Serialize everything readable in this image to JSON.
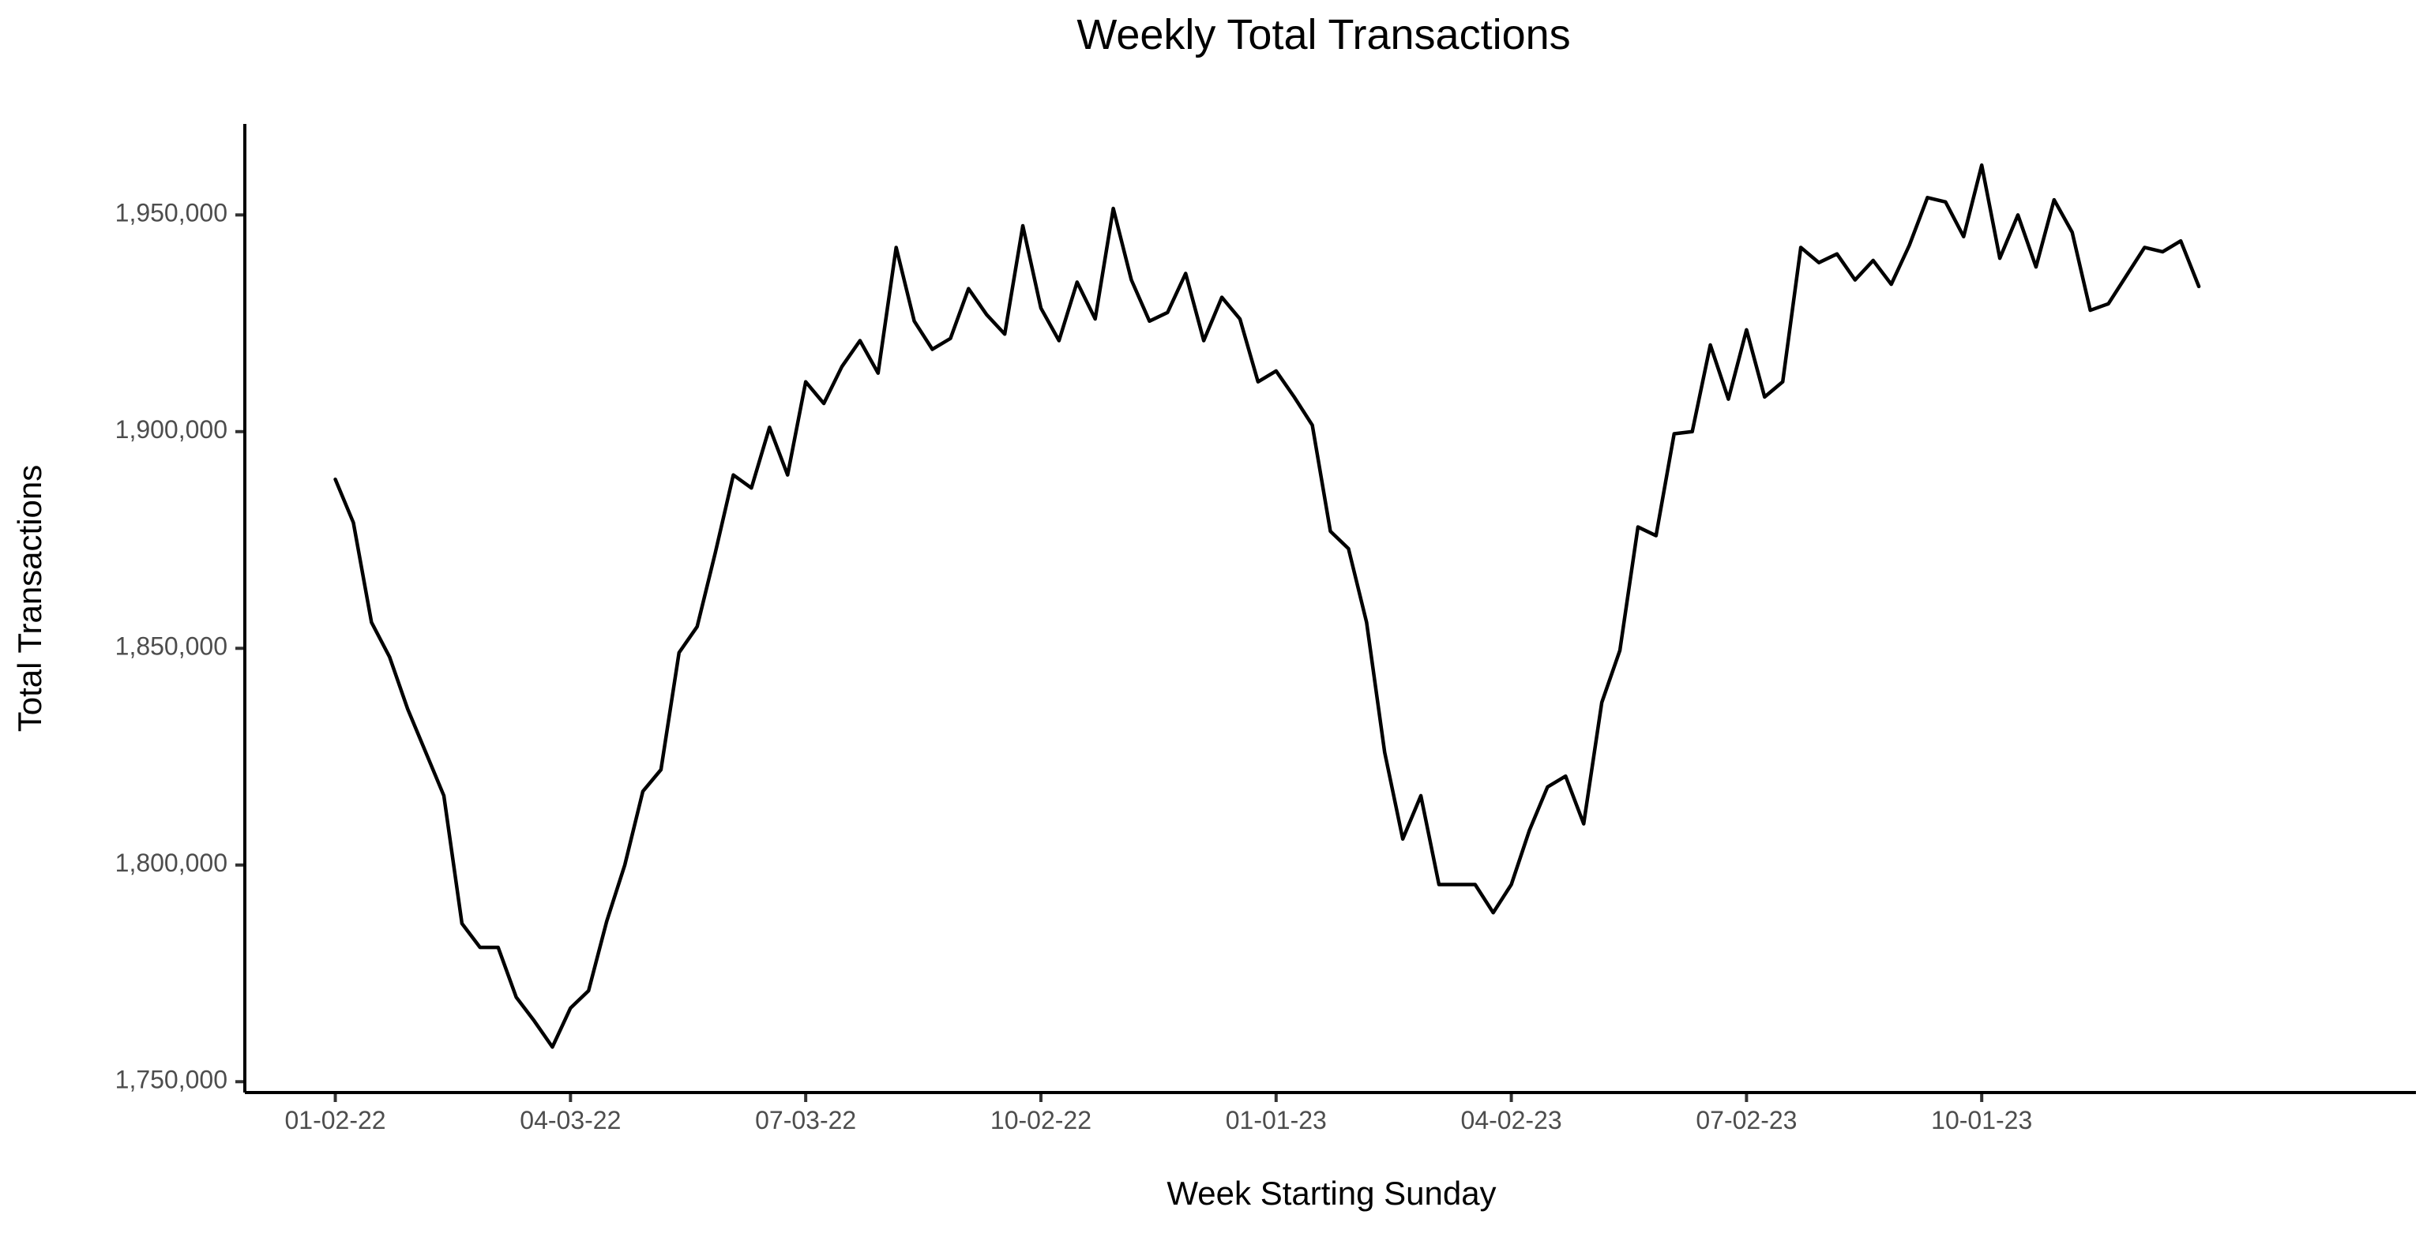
{
  "chart_data": {
    "type": "line",
    "title": "Weekly Total Transactions",
    "xlabel": "Week Starting Sunday",
    "ylabel": "Total Transactions",
    "x_start_date": "2022-01-02",
    "x_interval": "weekly",
    "xlim": [
      "2021-11-28",
      "2024-03-17"
    ],
    "ylim": [
      1747500,
      1971000
    ],
    "grid": false,
    "legend": "none",
    "x_ticks": [
      {
        "date": "2022-01-02",
        "label": "01-02-22"
      },
      {
        "date": "2022-04-03",
        "label": "04-03-22"
      },
      {
        "date": "2022-07-03",
        "label": "07-03-22"
      },
      {
        "date": "2022-10-02",
        "label": "10-02-22"
      },
      {
        "date": "2023-01-01",
        "label": "01-01-23"
      },
      {
        "date": "2023-04-02",
        "label": "04-02-23"
      },
      {
        "date": "2023-07-02",
        "label": "07-02-23"
      },
      {
        "date": "2023-10-01",
        "label": "10-01-23"
      }
    ],
    "y_ticks": [
      {
        "value": 1750000,
        "label": "1,750,000"
      },
      {
        "value": 1800000,
        "label": "1,800,000"
      },
      {
        "value": 1850000,
        "label": "1,850,000"
      },
      {
        "value": 1900000,
        "label": "1,900,000"
      },
      {
        "value": 1950000,
        "label": "1,950,000"
      }
    ],
    "series": [
      {
        "values": [
          1889000,
          1879000,
          1856000,
          1848000,
          1836000,
          1826000,
          1816000,
          1786500,
          1781000,
          1781000,
          1769500,
          1764000,
          1758000,
          1767000,
          1771000,
          1787000,
          1800000,
          1817000,
          1822000,
          1849000,
          1855000,
          1872000,
          1890000,
          1887000,
          1901000,
          1890000,
          1911500,
          1906500,
          1915000,
          1921000,
          1913500,
          1942500,
          1925500,
          1919000,
          1921500,
          1933000,
          1927000,
          1922500,
          1947500,
          1928500,
          1921000,
          1934500,
          1926000,
          1951500,
          1935000,
          1925500,
          1927500,
          1936500,
          1921000,
          1931000,
          1926000,
          1911500,
          1914000,
          1908000,
          1901500,
          1877000,
          1873000,
          1856000,
          1826000,
          1806000,
          1816000,
          1795500,
          1795500,
          1795500,
          1789000,
          1795500,
          1808000,
          1818000,
          1820500,
          1809500,
          1837500,
          1849500,
          1878000,
          1876000,
          1899500,
          1900000,
          1920000,
          1907500,
          1923500,
          1908000,
          1911500,
          1942500,
          1939000,
          1941000,
          1935000,
          1939500,
          1934000,
          1943000,
          1954000,
          1953000,
          1945000,
          1961500,
          1940000,
          1950000,
          1938000,
          1953500,
          1946000,
          1928000,
          1929500,
          1936000,
          1942500,
          1941500,
          1944000,
          1933500
        ]
      }
    ]
  }
}
